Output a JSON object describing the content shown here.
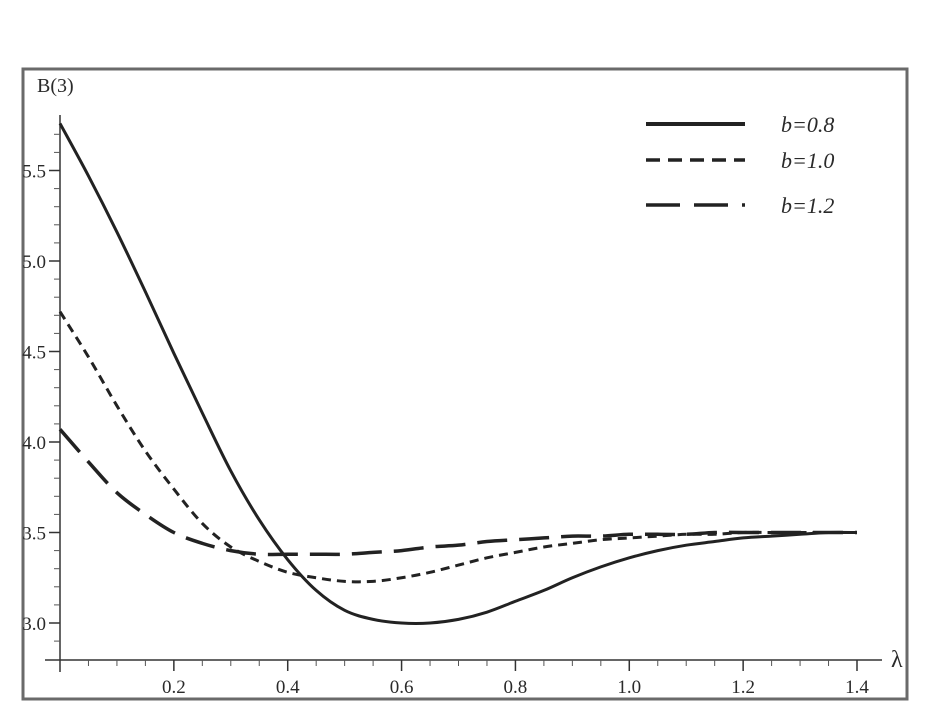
{
  "chart_data": {
    "type": "line",
    "xlabel": "λ",
    "ylabel": "B(3)",
    "xlim": [
      0,
      1.4
    ],
    "ylim": [
      2.85,
      5.8
    ],
    "x_ticks": [
      {
        "value": 0.2,
        "label": "0.2"
      },
      {
        "value": 0.4,
        "label": "0.4"
      },
      {
        "value": 0.6,
        "label": "0.6"
      },
      {
        "value": 0.8,
        "label": "0.8"
      },
      {
        "value": 1.0,
        "label": "1.0"
      },
      {
        "value": 1.2,
        "label": "1.2"
      },
      {
        "value": 1.4,
        "label": "1.4"
      }
    ],
    "y_ticks": [
      {
        "value": 3.0,
        "label": "3.0"
      },
      {
        "value": 3.5,
        "label": "3.5"
      },
      {
        "value": 4.0,
        "label": "4.0"
      },
      {
        "value": 4.5,
        "label": "4.5"
      },
      {
        "value": 5.0,
        "label": "5.0"
      },
      {
        "value": 5.5,
        "label": "5.5"
      }
    ],
    "grid": false,
    "legend_position": "top-right",
    "series": [
      {
        "name": "b=0.8",
        "style": "solid",
        "x": [
          0,
          0.05,
          0.1,
          0.15,
          0.2,
          0.25,
          0.3,
          0.35,
          0.4,
          0.45,
          0.5,
          0.55,
          0.6,
          0.65,
          0.7,
          0.75,
          0.8,
          0.85,
          0.9,
          0.95,
          1.0,
          1.05,
          1.1,
          1.15,
          1.2,
          1.25,
          1.3,
          1.35,
          1.4
        ],
        "y": [
          5.76,
          5.47,
          5.16,
          4.83,
          4.49,
          4.16,
          3.84,
          3.57,
          3.35,
          3.18,
          3.07,
          3.02,
          3.0,
          3.0,
          3.02,
          3.06,
          3.12,
          3.18,
          3.25,
          3.31,
          3.36,
          3.4,
          3.43,
          3.45,
          3.47,
          3.48,
          3.49,
          3.5,
          3.5
        ]
      },
      {
        "name": "b=1.0",
        "style": "short-dash",
        "x": [
          0,
          0.05,
          0.1,
          0.15,
          0.2,
          0.25,
          0.3,
          0.35,
          0.4,
          0.45,
          0.5,
          0.55,
          0.6,
          0.65,
          0.7,
          0.75,
          0.8,
          0.85,
          0.9,
          0.95,
          1.0,
          1.05,
          1.1,
          1.15,
          1.2,
          1.25,
          1.3,
          1.35,
          1.4
        ],
        "y": [
          4.72,
          4.47,
          4.2,
          3.95,
          3.74,
          3.55,
          3.42,
          3.34,
          3.28,
          3.25,
          3.23,
          3.23,
          3.25,
          3.28,
          3.32,
          3.36,
          3.39,
          3.42,
          3.44,
          3.46,
          3.47,
          3.48,
          3.49,
          3.49,
          3.5,
          3.5,
          3.5,
          3.5,
          3.5
        ]
      },
      {
        "name": "b=1.2",
        "style": "long-dash",
        "x": [
          0,
          0.05,
          0.1,
          0.15,
          0.2,
          0.25,
          0.3,
          0.35,
          0.4,
          0.45,
          0.5,
          0.55,
          0.6,
          0.65,
          0.7,
          0.75,
          0.8,
          0.85,
          0.9,
          0.95,
          1.0,
          1.05,
          1.1,
          1.15,
          1.2,
          1.25,
          1.3,
          1.35,
          1.4
        ],
        "y": [
          4.07,
          3.89,
          3.72,
          3.6,
          3.5,
          3.44,
          3.4,
          3.38,
          3.38,
          3.38,
          3.38,
          3.39,
          3.4,
          3.42,
          3.43,
          3.45,
          3.46,
          3.47,
          3.48,
          3.48,
          3.49,
          3.49,
          3.49,
          3.5,
          3.5,
          3.5,
          3.5,
          3.5,
          3.5
        ]
      }
    ]
  }
}
